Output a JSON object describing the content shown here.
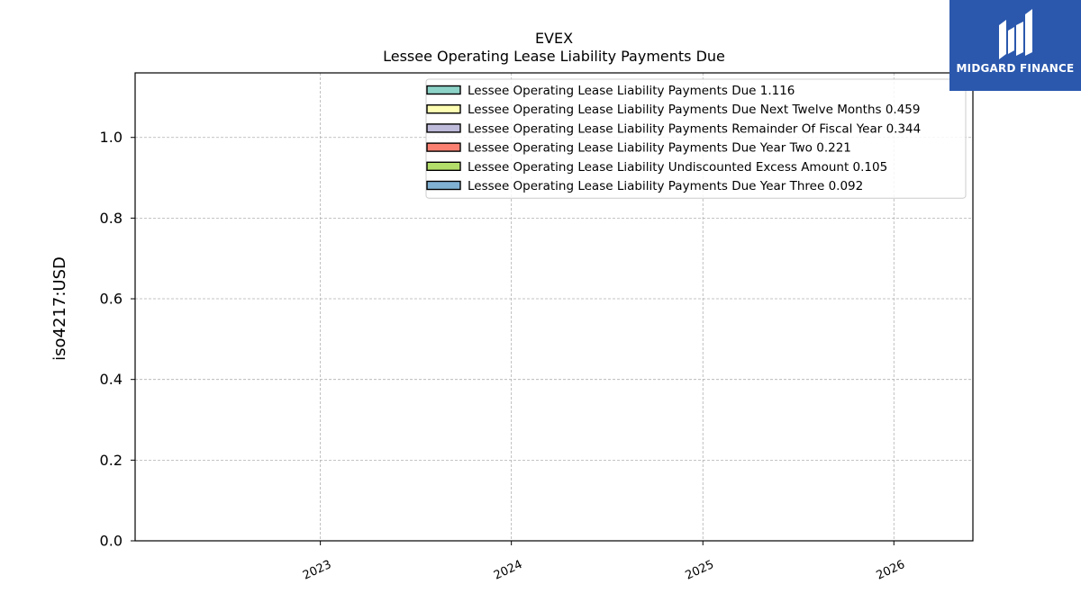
{
  "logo": {
    "text": "MIDGARD FINANCE",
    "icon": "midgard-finance-logo-mark",
    "background": "#2b58ad",
    "foreground": "#ffffff"
  },
  "chart_data": {
    "type": "area",
    "title": "EVEX",
    "subtitle": "Lessee Operating Lease Liability Payments Due",
    "ylabel": "iso4217:USD",
    "xlabel": "",
    "x_ticks": [
      "2023",
      "2024",
      "2025",
      "2026"
    ],
    "xlim": [
      "2022-01-12",
      "2026-06-01"
    ],
    "ylim": [
      0,
      1.16
    ],
    "y_ticks": [
      "0.0",
      "0.2",
      "0.4",
      "0.6",
      "0.8",
      "1.0"
    ],
    "grid": true,
    "legend_position": "top-right",
    "series": [
      {
        "name": "Lessee Operating Lease Liability Payments Due",
        "value_label": "1.116",
        "color": "#8dd3c7"
      },
      {
        "name": "Lessee Operating Lease Liability Payments Due Next Twelve Months",
        "value_label": "0.459",
        "color": "#ffffb3"
      },
      {
        "name": "Lessee Operating Lease Liability Payments Remainder Of Fiscal Year",
        "value_label": "0.344",
        "color": "#bebada"
      },
      {
        "name": "Lessee Operating Lease Liability Payments Due Year Two",
        "value_label": "0.221",
        "color": "#fb8072"
      },
      {
        "name": "Lessee Operating Lease Liability Undiscounted Excess Amount",
        "value_label": "0.105",
        "color": "#b3de69"
      },
      {
        "name": "Lessee Operating Lease Liability Payments Due Year Three",
        "value_label": "0.092",
        "color": "#80b1d3"
      }
    ]
  }
}
